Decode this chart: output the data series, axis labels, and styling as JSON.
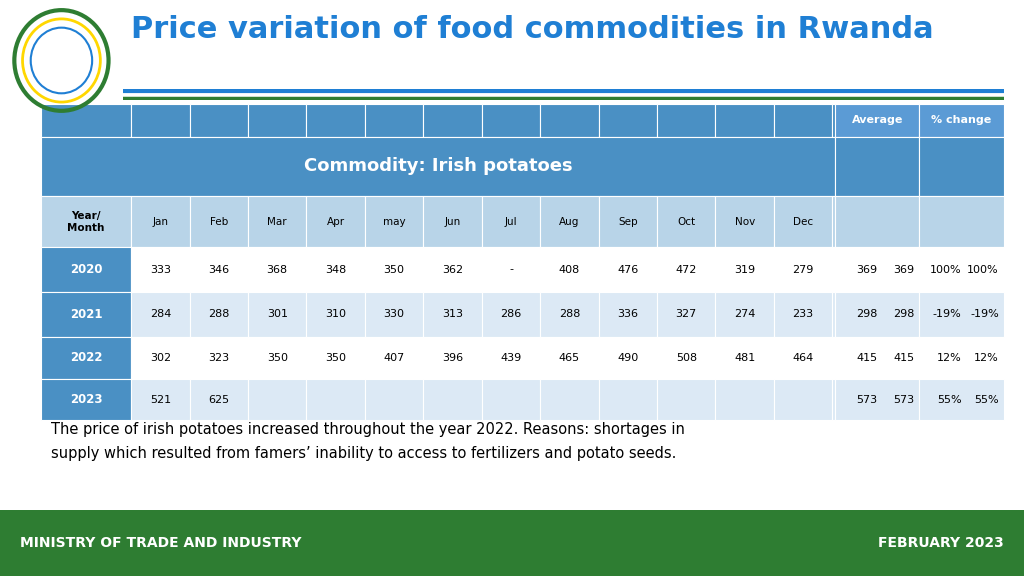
{
  "title": "Price variation of food commodities in Rwanda",
  "title_color": "#1F7FD4",
  "commodity_label": "Commodity: Irish potatoes",
  "months": [
    "Jan",
    "Feb",
    "Mar",
    "Apr",
    "may",
    "Jun",
    "Jul",
    "Aug",
    "Sep",
    "Oct",
    "Nov",
    "Dec"
  ],
  "rows": [
    {
      "year": "2020",
      "values": [
        "333",
        "346",
        "368",
        "348",
        "350",
        "362",
        "-",
        "408",
        "476",
        "472",
        "319",
        "279"
      ],
      "average": "369",
      "pct_change": "100%"
    },
    {
      "year": "2021",
      "values": [
        "284",
        "288",
        "301",
        "310",
        "330",
        "313",
        "286",
        "288",
        "336",
        "327",
        "274",
        "233"
      ],
      "average": "298",
      "pct_change": "-19%"
    },
    {
      "year": "2022",
      "values": [
        "302",
        "323",
        "350",
        "350",
        "407",
        "396",
        "439",
        "465",
        "490",
        "508",
        "481",
        "464"
      ],
      "average": "415",
      "pct_change": "12%"
    },
    {
      "year": "2023",
      "values": [
        "521",
        "625",
        "",
        "",
        "",
        "",
        "",
        "",
        "",
        "",
        "",
        ""
      ],
      "average": "573",
      "pct_change": "55%"
    }
  ],
  "note": "The price of irish potatoes increased throughout the year 2022. Reasons: shortages in\nsupply which resulted from famers’ inability to access to fertilizers and potato seeds.",
  "footer_left": "MINISTRY OF TRADE AND INDUSTRY",
  "footer_right": "FEBRUARY 2023",
  "footer_bg": "#2E7D32",
  "footer_text_color": "#FFFFFF",
  "table_header_bg": "#4A90C4",
  "table_header_text": "#FFFFFF",
  "table_subheader_bg": "#B8D4E8",
  "table_row_alt1_bg": "#FFFFFF",
  "table_row_alt2_bg": "#DCE9F5",
  "table_year_bg": "#4A90C4",
  "table_year_text": "#FFFFFF",
  "line_color_blue": "#1F7FD4",
  "line_color_green": "#2E7D32",
  "avg_pct_header_bg": "#5B9BD5"
}
